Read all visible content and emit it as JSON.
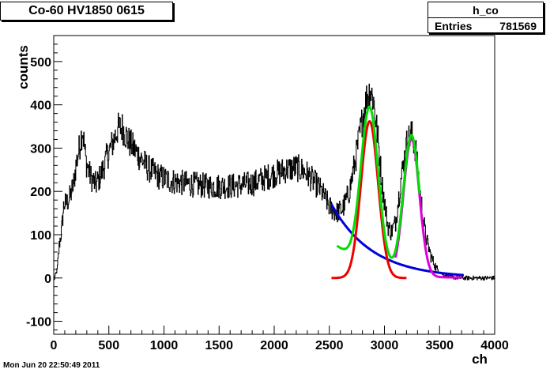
{
  "chart_data": {
    "type": "line",
    "title": "Co-60 HV1850 0615",
    "xlabel": "ch",
    "ylabel": "counts",
    "xlim": [
      0,
      4000
    ],
    "ylim": [
      -130,
      560
    ],
    "x_ticks": [
      0,
      500,
      1000,
      1500,
      2000,
      2500,
      3000,
      3500,
      4000
    ],
    "y_ticks": [
      -100,
      0,
      100,
      200,
      300,
      400,
      500
    ],
    "grid": false,
    "stats": {
      "name": "h_co",
      "entries_label": "Entries",
      "entries_value": "781569"
    },
    "histogram": {
      "color": "#000000",
      "profile": [
        [
          0,
          -5
        ],
        [
          30,
          20
        ],
        [
          50,
          80
        ],
        [
          70,
          110
        ],
        [
          90,
          170
        ],
        [
          120,
          175
        ],
        [
          150,
          190
        ],
        [
          180,
          220
        ],
        [
          200,
          260
        ],
        [
          230,
          300
        ],
        [
          260,
          345
        ],
        [
          290,
          270
        ],
        [
          330,
          235
        ],
        [
          380,
          215
        ],
        [
          430,
          240
        ],
        [
          480,
          280
        ],
        [
          530,
          310
        ],
        [
          580,
          345
        ],
        [
          620,
          348
        ],
        [
          680,
          315
        ],
        [
          750,
          290
        ],
        [
          850,
          255
        ],
        [
          950,
          235
        ],
        [
          1050,
          225
        ],
        [
          1200,
          218
        ],
        [
          1400,
          212
        ],
        [
          1600,
          212
        ],
        [
          1800,
          218
        ],
        [
          1950,
          235
        ],
        [
          2100,
          250
        ],
        [
          2200,
          255
        ],
        [
          2280,
          245
        ],
        [
          2350,
          225
        ],
        [
          2400,
          210
        ],
        [
          2450,
          190
        ],
        [
          2500,
          165
        ],
        [
          2560,
          150
        ],
        [
          2620,
          160
        ],
        [
          2680,
          200
        ],
        [
          2740,
          280
        ],
        [
          2800,
          370
        ],
        [
          2840,
          420
        ],
        [
          2870,
          435
        ],
        [
          2900,
          410
        ],
        [
          2940,
          320
        ],
        [
          2980,
          210
        ],
        [
          3030,
          120
        ],
        [
          3060,
          105
        ],
        [
          3100,
          130
        ],
        [
          3150,
          230
        ],
        [
          3200,
          310
        ],
        [
          3240,
          335
        ],
        [
          3280,
          300
        ],
        [
          3320,
          200
        ],
        [
          3370,
          100
        ],
        [
          3420,
          50
        ],
        [
          3470,
          22
        ],
        [
          3530,
          8
        ],
        [
          3600,
          2
        ],
        [
          3700,
          0
        ],
        [
          3800,
          0
        ],
        [
          3900,
          0
        ],
        [
          4000,
          0
        ]
      ],
      "dip_points": [
        [
          50,
          5
        ],
        [
          80,
          40
        ],
        [
          60,
          -5
        ]
      ],
      "noise": 18
    },
    "fits": [
      {
        "name": "background",
        "color": "#0000dd",
        "type": "exp",
        "x_range": [
          2520,
          3720
        ],
        "A": 170,
        "x0": 2520,
        "tau": 370
      },
      {
        "name": "peak1",
        "color": "#ee0000",
        "type": "gauss",
        "x_range": [
          2520,
          3200
        ],
        "A": 362,
        "mu": 2865,
        "sigma": 78
      },
      {
        "name": "peak2",
        "color": "#dd00dd",
        "type": "gauss_plus_exp",
        "x_range": [
          3100,
          3700
        ],
        "A": 318,
        "mu": 3245,
        "sigma": 72
      },
      {
        "name": "total",
        "color": "#00dd00",
        "type": "sum",
        "x_range": [
          2570,
          3320
        ]
      }
    ]
  },
  "timestamp": "Mon Jun 20 22:50:49 2011"
}
